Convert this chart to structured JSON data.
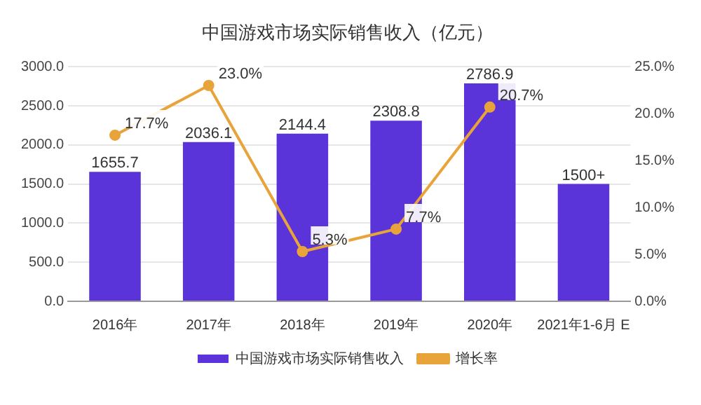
{
  "chart_data": {
    "type": "bar",
    "title": "中国游戏市场实际销售收入（亿元）",
    "categories": [
      "2016年",
      "2017年",
      "2018年",
      "2019年",
      "2020年",
      "2021年1-6月 E"
    ],
    "series": [
      {
        "name": "中国游戏市场实际销售收入",
        "color": "#5a34d8",
        "values": [
          1655.7,
          2036.1,
          2144.4,
          2308.8,
          2786.9,
          1500
        ],
        "value_labels": [
          "1655.7",
          "2036.1",
          "2144.4",
          "2308.8",
          "2786.9",
          "1500+"
        ]
      },
      {
        "name": "增长率",
        "type": "line",
        "axis": "y2",
        "color": "#e8a33a",
        "marker": "circle",
        "values": [
          17.7,
          23.0,
          5.3,
          7.7,
          20.7,
          null
        ],
        "value_labels": [
          "17.7%",
          "23.0%",
          "5.3%",
          "7.7%",
          "20.7%",
          null
        ]
      }
    ],
    "ylim": [
      0,
      3000
    ],
    "yticks": [
      {
        "value": 0,
        "label": "0.0"
      },
      {
        "value": 500,
        "label": "500.0"
      },
      {
        "value": 1000,
        "label": "1000.0"
      },
      {
        "value": 1500,
        "label": "1500.0"
      },
      {
        "value": 2000,
        "label": "2000.0"
      },
      {
        "value": 2500,
        "label": "2500.0"
      },
      {
        "value": 3000,
        "label": "3000.0"
      }
    ],
    "y2lim": [
      0,
      25
    ],
    "y2ticks": [
      {
        "value": 0,
        "label": "0.0%"
      },
      {
        "value": 5,
        "label": "5.0%"
      },
      {
        "value": 10,
        "label": "10.0%"
      },
      {
        "value": 15,
        "label": "15.0%"
      },
      {
        "value": 20,
        "label": "20.0%"
      },
      {
        "value": 25,
        "label": "25.0%"
      }
    ],
    "grid": "y",
    "legend": "bottom"
  }
}
